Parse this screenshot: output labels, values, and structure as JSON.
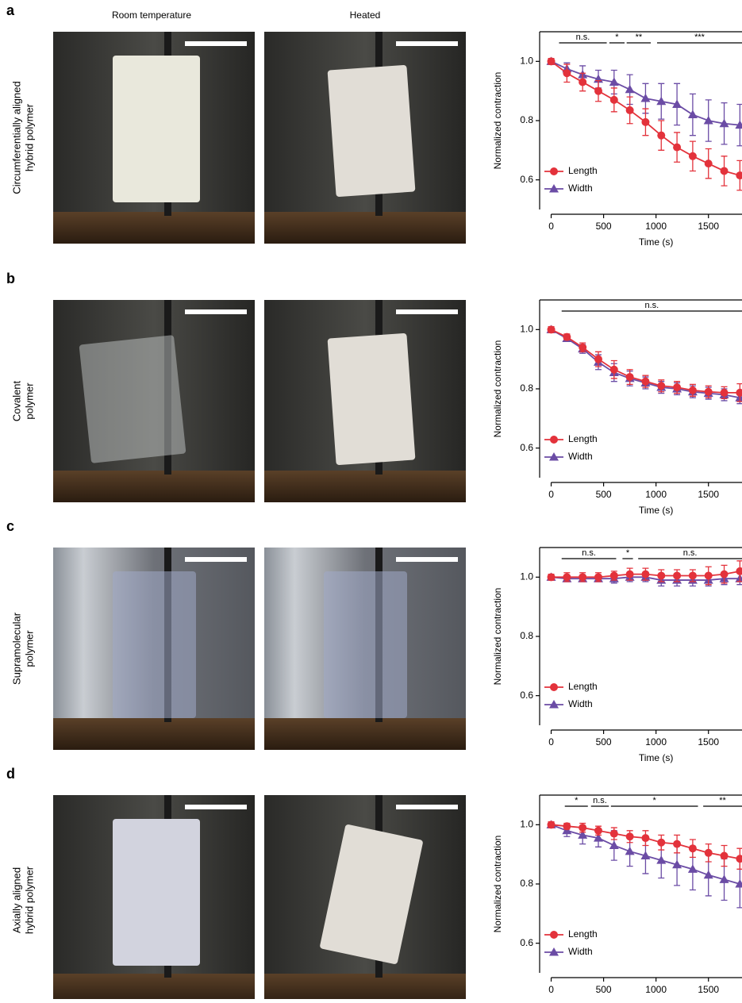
{
  "column_headers": [
    "Room temperature",
    "Heated"
  ],
  "panels": [
    {
      "label": "a",
      "row_label": [
        "Circumferentially aligned",
        "hybrid polymer"
      ]
    },
    {
      "label": "b",
      "row_label": [
        "Covalent",
        "polymer"
      ]
    },
    {
      "label": "c",
      "row_label": [
        "Supramolecular",
        "polymer"
      ]
    },
    {
      "label": "d",
      "row_label": [
        "Axially aligned",
        "hybrid polymer"
      ]
    }
  ],
  "chart_data": [
    {
      "type": "line",
      "xlabel": "Time (s)",
      "ylabel": "Normalized contraction",
      "x": [
        0,
        150,
        300,
        450,
        600,
        750,
        900,
        1050,
        1200,
        1350,
        1500,
        1650,
        1800
      ],
      "xlim": [
        -110,
        1820
      ],
      "xticks": [
        0,
        500,
        1000,
        1500
      ],
      "ylim": [
        0.5,
        1.1
      ],
      "yticks": [
        0.6,
        0.8,
        {
          "value": 1.0,
          "label": "1.0"
        }
      ],
      "legend": "lower left",
      "series": [
        {
          "name": "Length",
          "color": "#e3323b",
          "marker": "circle",
          "values": [
            1.0,
            0.96,
            0.93,
            0.9,
            0.87,
            0.835,
            0.795,
            0.75,
            0.71,
            0.68,
            0.655,
            0.63,
            0.615
          ],
          "errors": [
            0.01,
            0.03,
            0.03,
            0.035,
            0.04,
            0.045,
            0.045,
            0.05,
            0.05,
            0.05,
            0.05,
            0.05,
            0.05
          ]
        },
        {
          "name": "Width",
          "color": "#6b4ca5",
          "marker": "triangle",
          "values": [
            1.0,
            0.975,
            0.955,
            0.94,
            0.93,
            0.905,
            0.875,
            0.865,
            0.855,
            0.82,
            0.8,
            0.79,
            0.785
          ],
          "errors": [
            0.01,
            0.02,
            0.03,
            0.03,
            0.04,
            0.05,
            0.05,
            0.06,
            0.07,
            0.07,
            0.07,
            0.07,
            0.07
          ]
        }
      ],
      "annotations": [
        {
          "text": "n.s.",
          "x": [
            75,
            530
          ]
        },
        {
          "text": "*",
          "x": [
            555,
            700
          ]
        },
        {
          "text": "**",
          "x": [
            720,
            950
          ]
        },
        {
          "text": "***",
          "x": [
            1010,
            1820
          ]
        }
      ]
    },
    {
      "type": "line",
      "xlabel": "Time (s)",
      "ylabel": "Normalized contraction",
      "x": [
        0,
        150,
        300,
        450,
        600,
        750,
        900,
        1050,
        1200,
        1350,
        1500,
        1650,
        1800
      ],
      "xlim": [
        -110,
        1820
      ],
      "xticks": [
        0,
        500,
        1000,
        1500
      ],
      "ylim": [
        0.5,
        1.1
      ],
      "yticks": [
        0.6,
        0.8,
        {
          "value": 1.0,
          "label": "1.0"
        }
      ],
      "legend": "lower left",
      "series": [
        {
          "name": "Length",
          "color": "#e3323b",
          "marker": "circle",
          "values": [
            1.0,
            0.975,
            0.94,
            0.9,
            0.865,
            0.84,
            0.825,
            0.81,
            0.805,
            0.795,
            0.79,
            0.787,
            0.787
          ],
          "errors": [
            0.01,
            0.01,
            0.015,
            0.025,
            0.03,
            0.025,
            0.02,
            0.02,
            0.02,
            0.02,
            0.02,
            0.02,
            0.03
          ]
        },
        {
          "name": "Width",
          "color": "#6b4ca5",
          "marker": "triangle",
          "values": [
            1.0,
            0.97,
            0.935,
            0.89,
            0.855,
            0.835,
            0.82,
            0.805,
            0.8,
            0.79,
            0.785,
            0.78,
            0.77
          ],
          "errors": [
            0.01,
            0.01,
            0.015,
            0.025,
            0.03,
            0.025,
            0.02,
            0.02,
            0.02,
            0.02,
            0.02,
            0.02,
            0.02
          ]
        }
      ],
      "annotations": [
        {
          "text": "n.s.",
          "x": [
            100,
            1820
          ]
        }
      ]
    },
    {
      "type": "line",
      "xlabel": "Time (s)",
      "ylabel": "Normalized contraction",
      "x": [
        0,
        150,
        300,
        450,
        600,
        750,
        900,
        1050,
        1200,
        1350,
        1500,
        1650,
        1800
      ],
      "xlim": [
        -110,
        1820
      ],
      "xticks": [
        0,
        500,
        1000,
        1500
      ],
      "ylim": [
        0.5,
        1.1
      ],
      "yticks": [
        0.6,
        0.8,
        {
          "value": 1.0,
          "label": "1.0"
        }
      ],
      "legend": "lower left",
      "series": [
        {
          "name": "Length",
          "color": "#e3323b",
          "marker": "circle",
          "values": [
            1.0,
            1.0,
            1.0,
            1.0,
            1.005,
            1.01,
            1.01,
            1.005,
            1.005,
            1.005,
            1.005,
            1.01,
            1.02
          ],
          "errors": [
            0.01,
            0.015,
            0.015,
            0.015,
            0.015,
            0.02,
            0.02,
            0.02,
            0.02,
            0.02,
            0.03,
            0.03,
            0.035
          ]
        },
        {
          "name": "Width",
          "color": "#6b4ca5",
          "marker": "triangle",
          "values": [
            1.0,
            0.995,
            0.995,
            0.995,
            0.995,
            1.0,
            1.0,
            0.99,
            0.99,
            0.99,
            0.99,
            0.995,
            0.995
          ],
          "errors": [
            0.01,
            0.01,
            0.01,
            0.01,
            0.015,
            0.015,
            0.015,
            0.02,
            0.02,
            0.02,
            0.02,
            0.02,
            0.02
          ]
        }
      ],
      "annotations": [
        {
          "text": "n.s.",
          "x": [
            100,
            620
          ]
        },
        {
          "text": "*",
          "x": [
            680,
            780
          ]
        },
        {
          "text": "n.s.",
          "x": [
            830,
            1820
          ]
        }
      ]
    },
    {
      "type": "line",
      "xlabel": "Time (s)",
      "ylabel": "Normalized contraction",
      "x": [
        0,
        150,
        300,
        450,
        600,
        750,
        900,
        1050,
        1200,
        1350,
        1500,
        1650,
        1800
      ],
      "xlim": [
        -110,
        1820
      ],
      "xticks": [
        0,
        500,
        1000,
        1500
      ],
      "ylim": [
        0.5,
        1.1
      ],
      "yticks": [
        0.6,
        0.8,
        {
          "value": 1.0,
          "label": "1.0"
        }
      ],
      "legend": "lower left",
      "series": [
        {
          "name": "Length",
          "color": "#e3323b",
          "marker": "circle",
          "values": [
            1.0,
            0.995,
            0.99,
            0.98,
            0.97,
            0.96,
            0.955,
            0.94,
            0.935,
            0.92,
            0.905,
            0.895,
            0.885
          ],
          "errors": [
            0.01,
            0.01,
            0.015,
            0.015,
            0.02,
            0.02,
            0.025,
            0.025,
            0.03,
            0.03,
            0.03,
            0.035,
            0.035
          ]
        },
        {
          "name": "Width",
          "color": "#6b4ca5",
          "marker": "triangle",
          "values": [
            1.0,
            0.98,
            0.965,
            0.955,
            0.93,
            0.91,
            0.895,
            0.88,
            0.865,
            0.85,
            0.83,
            0.815,
            0.8
          ],
          "errors": [
            0.01,
            0.02,
            0.03,
            0.03,
            0.05,
            0.05,
            0.06,
            0.06,
            0.07,
            0.07,
            0.07,
            0.07,
            0.08
          ]
        }
      ],
      "annotations": [
        {
          "text": "*",
          "x": [
            130,
            350
          ]
        },
        {
          "text": "n.s.",
          "x": [
            380,
            550
          ]
        },
        {
          "text": "*",
          "x": [
            570,
            1400
          ]
        },
        {
          "text": "**",
          "x": [
            1450,
            1820
          ]
        }
      ]
    }
  ]
}
